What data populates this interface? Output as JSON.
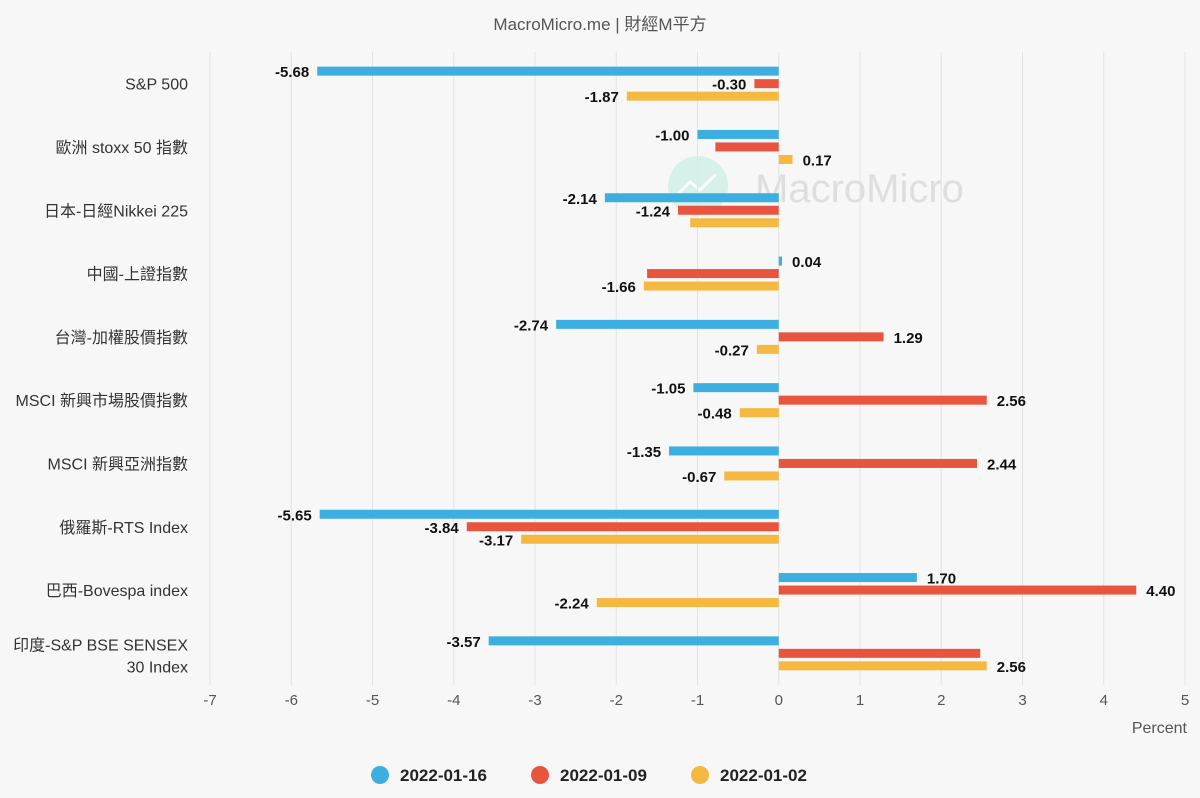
{
  "chart_data": {
    "type": "bar",
    "orientation": "horizontal",
    "title": "MacroMicro.me | 財經M平方",
    "watermark": "MacroMicro",
    "xlabel": "Percent",
    "ylabel": "",
    "xlim": [
      -7,
      5
    ],
    "xticks": [
      -7,
      -6,
      -5,
      -4,
      -3,
      -2,
      -1,
      0,
      1,
      2,
      3,
      4,
      5
    ],
    "grid": true,
    "legend_position": "bottom",
    "categories": [
      "S&P 500",
      "歐洲 stoxx 50 指數",
      "日本-日經Nikkei 225",
      "中國-上證指數",
      "台灣-加權股價指數",
      "MSCI 新興市場股價指數",
      "MSCI 新興亞洲指數",
      "俄羅斯-RTS Index",
      "巴西-Bovespa index",
      "印度-S&P BSE SENSEX 30 Index"
    ],
    "series": [
      {
        "name": "2022-01-16",
        "color": "#3daee0",
        "values": [
          -5.68,
          -1.0,
          -2.14,
          0.04,
          -2.74,
          -1.05,
          -1.35,
          -5.65,
          1.7,
          -3.57
        ],
        "labels": [
          "-5.68",
          "-1.00",
          "-2.14",
          "0.04",
          "-2.74",
          "-1.05",
          "-1.35",
          "-5.65",
          "1.70",
          "-3.57"
        ]
      },
      {
        "name": "2022-01-09",
        "color": "#e8553e",
        "values": [
          -0.3,
          -0.78,
          -1.24,
          -1.62,
          1.29,
          2.56,
          2.44,
          -3.84,
          4.4,
          2.48
        ],
        "labels": [
          "-0.30",
          "",
          "-1.24",
          "",
          "1.29",
          "2.56",
          "2.44",
          "-3.84",
          "4.40",
          ""
        ]
      },
      {
        "name": "2022-01-02",
        "color": "#f5b942",
        "values": [
          -1.87,
          0.17,
          -1.09,
          -1.66,
          -0.27,
          -0.48,
          -0.67,
          -3.17,
          -2.24,
          2.56
        ],
        "labels": [
          "-1.87",
          "0.17",
          "",
          "-1.66",
          "-0.27",
          "-0.48",
          "-0.67",
          "-3.17",
          "-2.24",
          "2.56"
        ]
      }
    ]
  }
}
